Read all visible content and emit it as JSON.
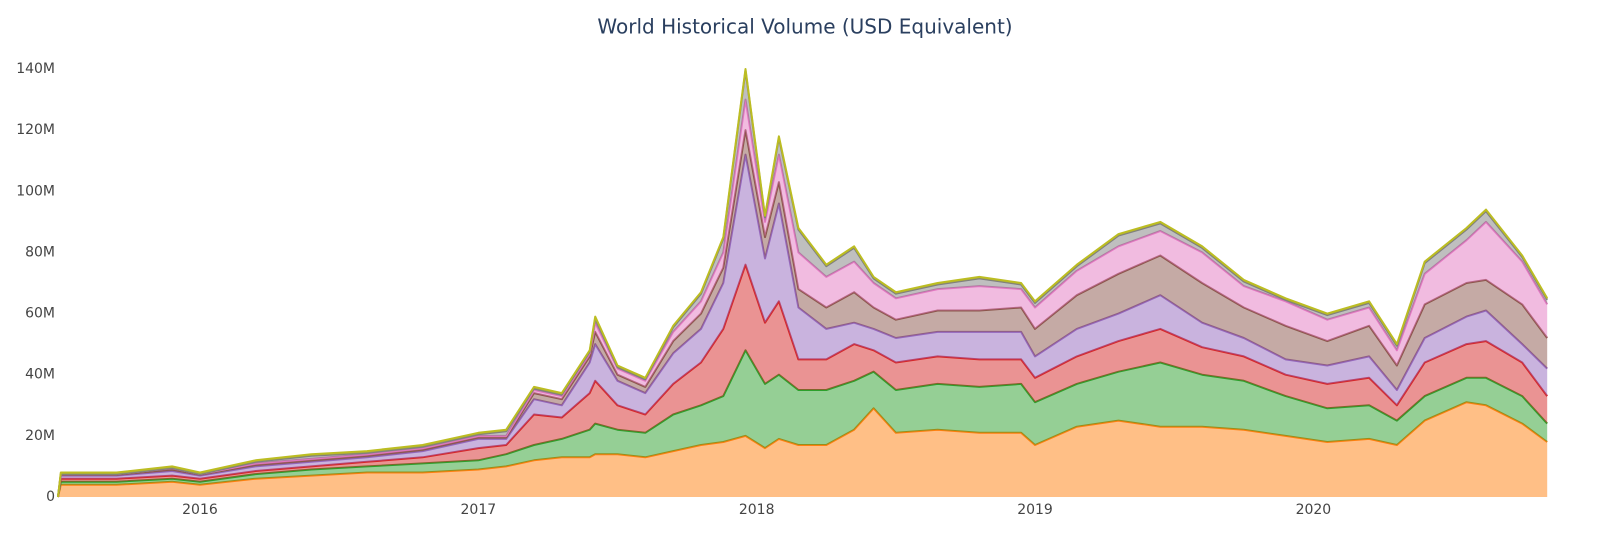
{
  "chart_data": {
    "type": "stacked-area",
    "title": "World Historical Volume (USD Equivalent)",
    "x": [
      2015.49,
      2015.5,
      2015.7,
      2015.9,
      2016.0,
      2016.2,
      2016.4,
      2016.6,
      2016.8,
      2017.0,
      2017.1,
      2017.2,
      2017.3,
      2017.4,
      2017.42,
      2017.5,
      2017.6,
      2017.7,
      2017.8,
      2017.88,
      2017.96,
      2018.03,
      2018.08,
      2018.15,
      2018.25,
      2018.35,
      2018.42,
      2018.5,
      2018.65,
      2018.8,
      2018.95,
      2019.0,
      2019.15,
      2019.3,
      2019.45,
      2019.6,
      2019.75,
      2019.9,
      2020.05,
      2020.2,
      2020.3,
      2020.4,
      2020.55,
      2020.62,
      2020.75,
      2020.84
    ],
    "xlim": [
      2015.49,
      2020.85
    ],
    "xticks": [
      2016,
      2017,
      2018,
      2019,
      2020
    ],
    "ylim": [
      0,
      140
    ],
    "yticks": [
      0,
      {
        "value": 20,
        "label": "20M"
      },
      {
        "value": 40,
        "label": "40M"
      },
      {
        "value": 60,
        "label": "60M"
      },
      {
        "value": 80,
        "label": "80M"
      },
      {
        "value": 100,
        "label": "100M"
      },
      {
        "value": 120,
        "label": "120M"
      },
      {
        "value": 140,
        "label": "140M"
      }
    ],
    "series": [
      {
        "color": "#ff7f0e",
        "values": [
          0,
          4,
          4,
          5,
          4,
          6,
          7,
          8,
          8,
          9,
          10,
          12,
          13,
          13,
          14,
          14,
          13,
          15,
          17,
          18,
          20,
          16,
          19,
          17,
          17,
          22,
          29,
          21,
          22,
          21,
          21,
          17,
          23,
          25,
          23,
          23,
          22,
          20,
          18,
          19,
          17,
          25,
          31,
          30,
          24,
          18
        ]
      },
      {
        "color": "#2ca02c",
        "values": [
          0,
          1,
          1,
          1,
          1,
          1.5,
          2,
          2,
          3,
          3,
          4,
          5,
          6,
          9,
          10,
          8,
          8,
          12,
          13,
          15,
          28,
          21,
          21,
          18,
          18,
          16,
          12,
          14,
          15,
          15,
          16,
          14,
          14,
          16,
          21,
          17,
          16,
          13,
          11,
          11,
          8,
          8,
          8,
          9,
          9,
          6
        ]
      },
      {
        "color": "#d62728",
        "values": [
          0,
          1,
          1,
          1,
          1,
          1,
          1,
          1.5,
          2,
          4,
          3,
          10,
          7,
          12,
          14,
          8,
          6,
          10,
          14,
          22,
          28,
          20,
          24,
          10,
          10,
          12,
          7,
          9,
          9,
          9,
          8,
          8,
          9,
          10,
          11,
          9,
          8,
          7,
          8,
          9,
          5,
          11,
          11,
          12,
          11,
          9
        ]
      },
      {
        "color": "#9467bd",
        "values": [
          0,
          1,
          1,
          1.5,
          1,
          1.5,
          1.5,
          1.5,
          2,
          3,
          2,
          5,
          4,
          10,
          12,
          8,
          7,
          10,
          11,
          15,
          36,
          21,
          32,
          17,
          10,
          7,
          7,
          8,
          8,
          9,
          9,
          7,
          9,
          9,
          11,
          8,
          6,
          5,
          6,
          7,
          5,
          8,
          9,
          10,
          6,
          9
        ]
      },
      {
        "color": "#8c564b",
        "values": [
          0,
          0.3,
          0.3,
          0.5,
          0.3,
          0.5,
          0.5,
          0.5,
          0.5,
          0.5,
          0.5,
          2,
          2,
          2,
          4,
          2,
          2,
          4,
          5,
          5,
          8,
          7,
          7,
          6,
          7,
          10,
          7,
          6,
          7,
          7,
          8,
          9,
          11,
          13,
          13,
          13,
          10,
          11,
          8,
          10,
          8,
          11,
          11,
          10,
          13,
          10
        ]
      },
      {
        "color": "#e377c2",
        "values": [
          0,
          0.2,
          0.2,
          0.5,
          0.2,
          0.5,
          0.5,
          0.5,
          0.5,
          0.5,
          0.5,
          1,
          1,
          1,
          3,
          2,
          2,
          3,
          4,
          5,
          10,
          5,
          9,
          12,
          10,
          10,
          8,
          7,
          7,
          8,
          6,
          7,
          8,
          9,
          8,
          10,
          7,
          8,
          7,
          6,
          5,
          10,
          14,
          19,
          14,
          11
        ]
      },
      {
        "color": "#7f7f7f",
        "values": [
          0,
          0,
          0,
          0,
          0,
          0.5,
          1,
          0.5,
          0.5,
          0.5,
          1.5,
          0.5,
          0.5,
          0.5,
          1.5,
          0.5,
          0.5,
          1.5,
          2.5,
          4.5,
          9.5,
          1.5,
          5.5,
          7.5,
          3.5,
          4.5,
          1.5,
          1.5,
          1.5,
          2.5,
          1.5,
          1.5,
          1.5,
          3.5,
          2.5,
          1.5,
          1.5,
          0.5,
          1.5,
          1.5,
          1.5,
          3.5,
          3.5,
          3.5,
          1.5,
          1.5
        ]
      },
      {
        "color": "#bcbd22",
        "values": [
          0,
          0.5,
          0.5,
          0.5,
          0.5,
          0.5,
          0.5,
          0.5,
          0.5,
          0.5,
          0.5,
          0.5,
          0.5,
          0.5,
          0.5,
          0.5,
          0.5,
          0.5,
          0.5,
          0.5,
          0.5,
          0.5,
          0.5,
          0.5,
          0.5,
          0.5,
          0.5,
          0.5,
          0.5,
          0.5,
          0.5,
          0.5,
          0.5,
          0.5,
          0.5,
          0.5,
          0.5,
          0.5,
          0.5,
          0.5,
          0.5,
          0.5,
          0.5,
          0.5,
          0.5,
          0.5
        ]
      }
    ]
  }
}
